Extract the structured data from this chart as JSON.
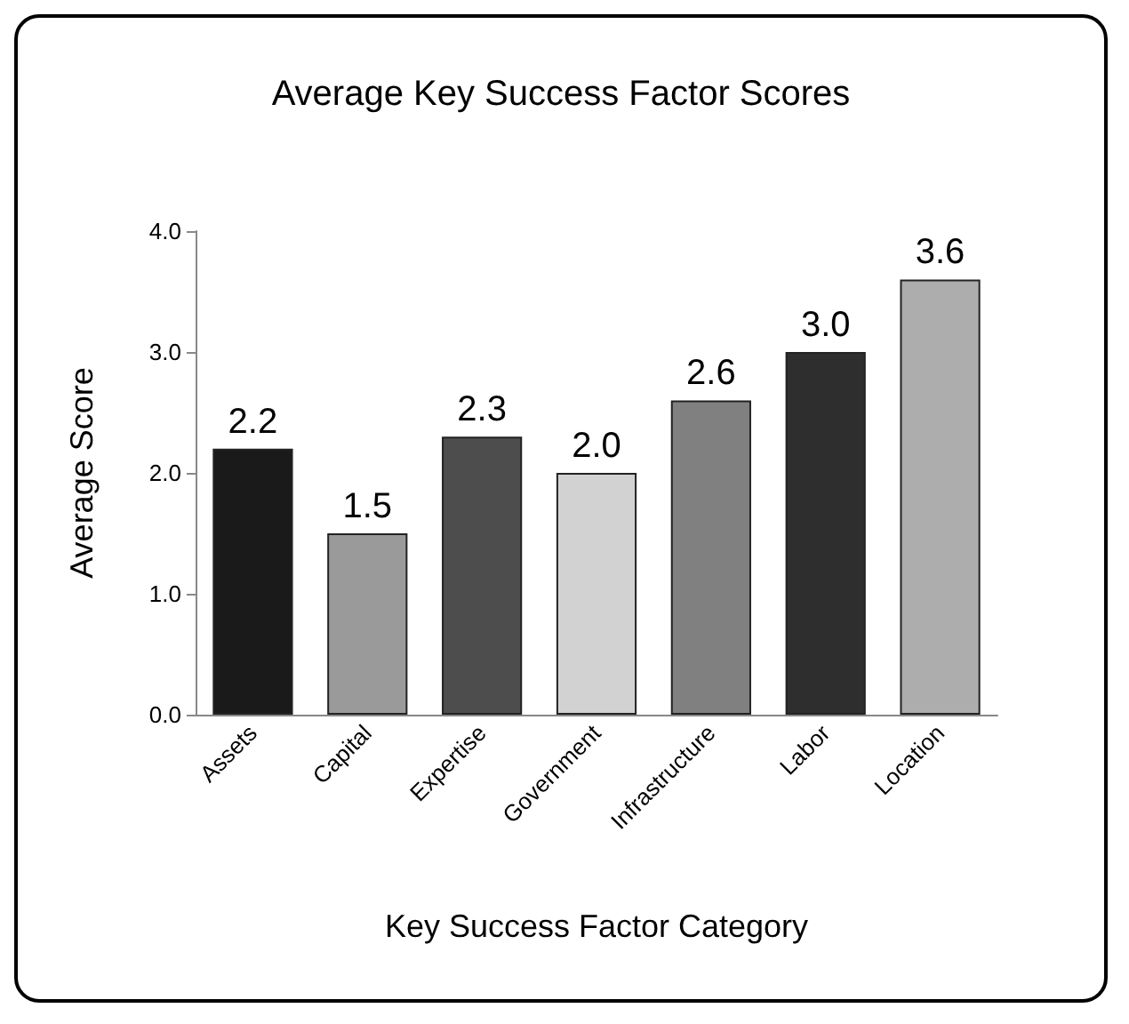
{
  "chart_data": {
    "type": "bar",
    "title": "Average Key Success Factor Scores",
    "xlabel": "Key Success Factor Category",
    "ylabel": "Average Score",
    "categories": [
      "Assets",
      "Capital",
      "Expertise",
      "Government",
      "Infrastructure",
      "Labor",
      "Location"
    ],
    "values": [
      2.2,
      1.5,
      2.3,
      2.0,
      2.6,
      3.0,
      3.6
    ],
    "value_labels": [
      "2.2",
      "1.5",
      "2.3",
      "2.0",
      "2.6",
      "3.0",
      "3.6"
    ],
    "colors": [
      "#1a1a1a",
      "#9a9a9a",
      "#4d4d4d",
      "#d2d2d2",
      "#808080",
      "#2e2e2e",
      "#adadad"
    ],
    "ylim": [
      0,
      4
    ],
    "yticks": [
      {
        "value": 0,
        "label": "0.0"
      },
      {
        "value": 1,
        "label": "1.0"
      },
      {
        "value": 2,
        "label": "2.0"
      },
      {
        "value": 3,
        "label": "3.0"
      },
      {
        "value": 4,
        "label": "4.0"
      }
    ],
    "grid": false
  }
}
